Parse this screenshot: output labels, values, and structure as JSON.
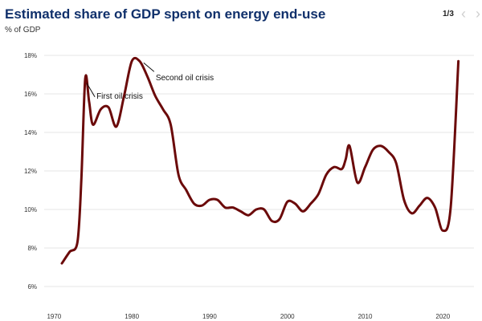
{
  "header": {
    "title": "Estimated share of GDP spent on energy end-use",
    "subtitle": "% of GDP",
    "pager": "1/3"
  },
  "colors": {
    "title": "#10306b",
    "line": "#6b0a0a",
    "grid": "#e6e6e6"
  },
  "icons": {
    "prev": "chevron-left-icon",
    "next": "chevron-right-icon"
  },
  "chart_data": {
    "type": "line",
    "title": "Estimated share of GDP spent on energy end-use",
    "ylabel": "% of GDP",
    "xlabel": "",
    "xlim": [
      1968,
      2024
    ],
    "ylim": [
      5,
      19
    ],
    "x_ticks": [
      1970,
      1980,
      1990,
      2000,
      2010,
      2020
    ],
    "y_ticks": [
      6,
      8,
      10,
      12,
      14,
      16,
      18
    ],
    "y_tick_labels": [
      "6%",
      "8%",
      "10%",
      "12%",
      "14%",
      "16%",
      "18%"
    ],
    "grid": true,
    "series": [
      {
        "name": "Share of GDP spent on energy end-use",
        "x": [
          1971,
          1972,
          1973,
          1973.5,
          1974,
          1974.5,
          1975,
          1976,
          1977,
          1978,
          1979,
          1980,
          1981,
          1982,
          1983,
          1984,
          1985,
          1986,
          1987,
          1988,
          1989,
          1990,
          1991,
          1992,
          1993,
          1994,
          1995,
          1996,
          1997,
          1998,
          1999,
          2000,
          2001,
          2002,
          2003,
          2004,
          2005,
          2006,
          2007,
          2007.5,
          2008,
          2009,
          2010,
          2011,
          2012,
          2013,
          2014,
          2015,
          2016,
          2017,
          2018,
          2019,
          2020,
          2021,
          2022
        ],
        "values": [
          7.2,
          7.8,
          8.3,
          11.5,
          16.8,
          15.6,
          14.4,
          15.2,
          15.3,
          14.3,
          15.9,
          17.7,
          17.7,
          16.9,
          15.9,
          15.2,
          14.4,
          11.8,
          11.0,
          10.3,
          10.2,
          10.5,
          10.5,
          10.1,
          10.1,
          9.9,
          9.7,
          10.0,
          10.0,
          9.4,
          9.5,
          10.4,
          10.3,
          9.9,
          10.3,
          10.8,
          11.8,
          12.2,
          12.1,
          12.6,
          13.3,
          11.4,
          12.2,
          13.1,
          13.3,
          13.0,
          12.4,
          10.5,
          9.8,
          10.2,
          10.6,
          10.1,
          8.9,
          10.1,
          17.7
        ]
      }
    ],
    "annotations": [
      {
        "text": "First oil crisis",
        "x": 1974,
        "y": 16.8
      },
      {
        "text": "Second oil crisis",
        "x": 1981,
        "y": 17.7
      }
    ]
  }
}
